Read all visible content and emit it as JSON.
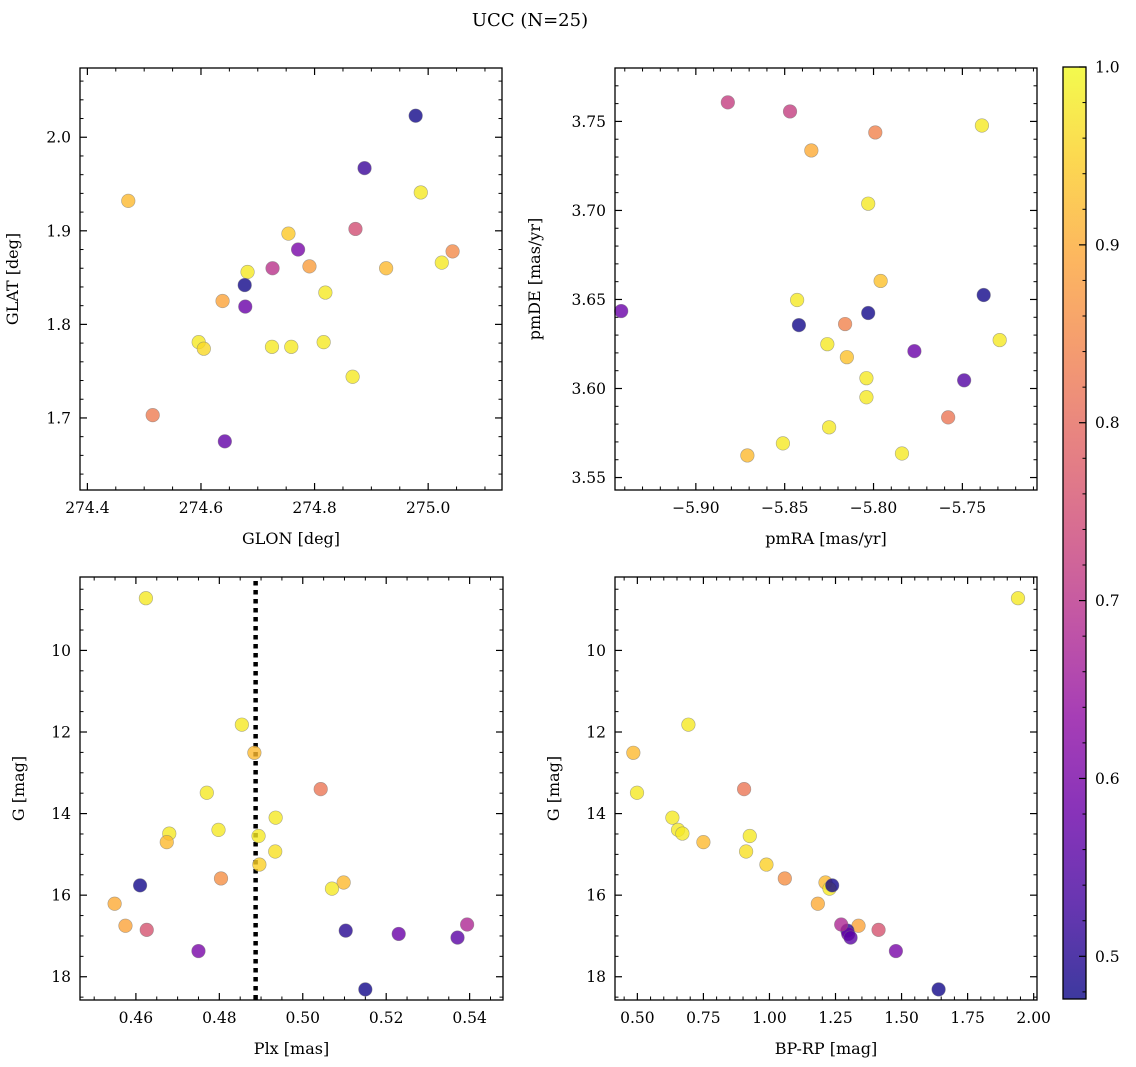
{
  "title": "UCC (N=25)",
  "colorbar": {
    "colormap": "plasma",
    "range": [
      0.476,
      1.0
    ],
    "ticks": [
      0.5,
      0.6,
      0.7,
      0.8,
      0.9,
      1.0
    ],
    "tick_labels": [
      "0.5",
      "0.6",
      "0.7",
      "0.8",
      "0.9",
      "1.0"
    ],
    "minor_step": 0.02,
    "alpha": 0.8
  },
  "chart_data": [
    {
      "type": "scatter",
      "xlabel": "GLON [deg]",
      "ylabel": "GLAT [deg]",
      "xlim": [
        274.387,
        275.13
      ],
      "ylim": [
        1.623,
        2.074
      ],
      "xticks": [
        274.4,
        274.6,
        274.8,
        275.0
      ],
      "xtick_labels": [
        "274.4",
        "274.6",
        "274.8",
        "275.0"
      ],
      "yticks": [
        1.7,
        1.8,
        1.9,
        2.0
      ],
      "ytick_labels": [
        "1.7",
        "1.8",
        "1.9",
        "2.0"
      ],
      "xminor": 0.05,
      "yminor": 0.02,
      "x": [
        274.472,
        274.978,
        274.888,
        274.987,
        274.754,
        274.771,
        274.872,
        275.043,
        275.024,
        274.926,
        274.791,
        274.726,
        274.682,
        274.677,
        274.819,
        274.638,
        274.678,
        274.596,
        274.605,
        274.725,
        274.759,
        274.816,
        274.867,
        274.515,
        274.642
      ],
      "y": [
        1.932,
        2.023,
        1.967,
        1.941,
        1.897,
        1.88,
        1.902,
        1.878,
        1.866,
        1.86,
        1.862,
        1.86,
        1.856,
        1.842,
        1.834,
        1.825,
        1.819,
        1.781,
        1.774,
        1.776,
        1.776,
        1.781,
        1.744,
        1.703,
        1.675
      ],
      "c": [
        0.92,
        0.48,
        0.52,
        0.98,
        0.94,
        0.6,
        0.75,
        0.85,
        0.98,
        0.92,
        0.88,
        0.7,
        0.98,
        0.48,
        0.98,
        0.89,
        0.58,
        0.98,
        0.96,
        0.98,
        0.98,
        0.98,
        0.98,
        0.83,
        0.57
      ]
    },
    {
      "type": "scatter",
      "xlabel": "pmRA [mas/yr]",
      "ylabel": "pmDE [mas/yr]",
      "xlim": [
        -5.9455,
        -5.708
      ],
      "ylim": [
        3.543,
        3.78
      ],
      "xticks": [
        -5.9,
        -5.85,
        -5.8,
        -5.75
      ],
      "xtick_labels": [
        "−5.90",
        "−5.85",
        "−5.80",
        "−5.75"
      ],
      "yticks": [
        3.55,
        3.6,
        3.65,
        3.7,
        3.75
      ],
      "ytick_labels": [
        "3.55",
        "3.60",
        "3.65",
        "3.70",
        "3.75"
      ],
      "xminor": 0.01,
      "yminor": 0.01,
      "x": [
        -5.882,
        -5.847,
        -5.799,
        -5.739,
        -5.835,
        -5.803,
        -5.796,
        -5.843,
        -5.942,
        -5.738,
        -5.803,
        -5.842,
        -5.816,
        -5.826,
        -5.815,
        -5.729,
        -5.777,
        -5.804,
        -5.749,
        -5.804,
        -5.758,
        -5.825,
        -5.851,
        -5.784,
        -5.871
      ],
      "y": [
        3.7607,
        3.7556,
        3.7438,
        3.7477,
        3.7337,
        3.7038,
        3.6604,
        3.6497,
        3.6435,
        3.6525,
        3.6424,
        3.6356,
        3.6362,
        3.6249,
        3.6176,
        3.6272,
        3.621,
        3.6058,
        3.6046,
        3.5951,
        3.5838,
        3.5782,
        3.5692,
        3.5635,
        3.5624
      ],
      "c": [
        0.72,
        0.72,
        0.84,
        0.98,
        0.9,
        0.98,
        0.93,
        0.98,
        0.58,
        0.48,
        0.48,
        0.48,
        0.84,
        0.98,
        0.93,
        0.98,
        0.58,
        0.98,
        0.55,
        0.98,
        0.82,
        0.98,
        0.98,
        0.98,
        0.92
      ]
    },
    {
      "type": "scatter",
      "xlabel": "Plx [mas]",
      "ylabel": "G [mag]",
      "xlim": [
        0.4466,
        0.548
      ],
      "ylim": [
        18.57,
        8.2
      ],
      "xticks": [
        0.46,
        0.48,
        0.5,
        0.52,
        0.54
      ],
      "xtick_labels": [
        "0.46",
        "0.48",
        "0.50",
        "0.52",
        "0.54"
      ],
      "yticks": [
        10,
        12,
        14,
        16,
        18
      ],
      "ytick_labels": [
        "10",
        "12",
        "14",
        "16",
        "18"
      ],
      "xminor": 0.005,
      "yminor": 0.5,
      "vline": 0.4887,
      "x": [
        0.4624,
        0.4854,
        0.4884,
        0.477,
        0.5043,
        0.4935,
        0.4798,
        0.468,
        0.4674,
        0.4894,
        0.4934,
        0.4896,
        0.4804,
        0.5098,
        0.507,
        0.461,
        0.4549,
        0.4575,
        0.4626,
        0.5103,
        0.523,
        0.5394,
        0.5371,
        0.475,
        0.515
      ],
      "y": [
        8.72,
        11.82,
        12.51,
        13.49,
        13.4,
        14.1,
        14.4,
        14.49,
        14.7,
        14.55,
        14.93,
        15.25,
        15.59,
        15.69,
        15.84,
        15.76,
        16.21,
        16.75,
        16.85,
        16.87,
        16.95,
        16.72,
        17.04,
        17.37,
        18.31
      ],
      "c": [
        0.98,
        0.98,
        0.92,
        0.98,
        0.82,
        0.98,
        0.98,
        0.98,
        0.92,
        0.98,
        0.97,
        0.95,
        0.86,
        0.92,
        0.98,
        0.48,
        0.9,
        0.89,
        0.76,
        0.5,
        0.58,
        0.68,
        0.56,
        0.6,
        0.48
      ]
    },
    {
      "type": "scatter",
      "xlabel": "BP-RP [mag]",
      "ylabel": "G [mag]",
      "xlim": [
        0.4154,
        2.0126
      ],
      "ylim": [
        18.57,
        8.2
      ],
      "xticks": [
        0.5,
        0.75,
        1.0,
        1.25,
        1.5,
        1.75,
        2.0
      ],
      "xtick_labels": [
        "0.50",
        "0.75",
        "1.00",
        "1.25",
        "1.50",
        "1.75",
        "2.00"
      ],
      "yticks": [
        10,
        12,
        14,
        16,
        18
      ],
      "ytick_labels": [
        "10",
        "12",
        "14",
        "16",
        "18"
      ],
      "xminor": 0.05,
      "yminor": 0.5,
      "x": [
        1.9407,
        0.6932,
        0.4848,
        0.4987,
        0.904,
        0.6326,
        0.654,
        0.6705,
        0.75,
        0.9255,
        0.9116,
        0.9886,
        1.0581,
        1.2121,
        1.2273,
        1.2374,
        1.1831,
        1.3371,
        1.4129,
        1.295,
        1.298,
        1.2715,
        1.307,
        1.4785,
        1.6402
      ],
      "y": [
        8.72,
        11.82,
        12.51,
        13.49,
        13.4,
        14.1,
        14.4,
        14.49,
        14.7,
        14.55,
        14.93,
        15.25,
        15.59,
        15.69,
        15.84,
        15.76,
        16.21,
        16.75,
        16.85,
        16.87,
        16.95,
        16.72,
        17.04,
        17.37,
        18.31
      ],
      "c": [
        0.98,
        0.98,
        0.92,
        0.98,
        0.82,
        0.98,
        0.98,
        0.98,
        0.92,
        0.98,
        0.97,
        0.95,
        0.86,
        0.92,
        0.98,
        0.48,
        0.9,
        0.89,
        0.76,
        0.5,
        0.58,
        0.68,
        0.56,
        0.6,
        0.48
      ]
    }
  ]
}
